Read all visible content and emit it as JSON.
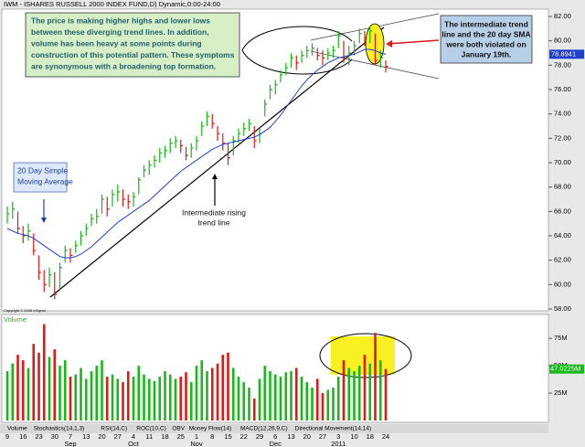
{
  "chart_data": {
    "type": "ohlc",
    "title": "IWM - ISHARES RUSSELL 2000 INDEX FUND,D) Dynamic,0:00-24:00",
    "copyright": "Copyright © 2005 eSignal",
    "categories": [
      "9",
      null,
      null,
      "16",
      null,
      null,
      "23",
      null,
      null,
      "30",
      null,
      null,
      "7",
      null,
      null,
      "13",
      null,
      null,
      "20",
      null,
      null,
      "27",
      null,
      null,
      "4",
      null,
      null,
      "11",
      null,
      null,
      "18",
      null,
      null,
      "25",
      null,
      null,
      "1",
      null,
      null,
      "8",
      null,
      null,
      "15",
      null,
      null,
      "22",
      null,
      null,
      "29",
      null,
      null,
      "6",
      null,
      null,
      "13",
      null,
      null,
      "20",
      null,
      null,
      "27",
      null,
      null,
      "3",
      null,
      null,
      "10",
      null,
      null,
      "18",
      null,
      null,
      "24"
    ],
    "months": [
      "Sep",
      "Oct",
      "Nov",
      "Dec",
      "2011"
    ],
    "high": [
      66.4,
      66.8,
      66.0,
      64.8,
      65.0,
      64.2,
      62.4,
      61.2,
      61.4,
      61.0,
      61.8,
      63.2,
      63.0,
      63.6,
      64.4,
      65.0,
      65.8,
      66.2,
      67.4,
      67.2,
      67.8,
      68.2,
      67.8,
      67.4,
      67.6,
      68.8,
      69.8,
      70.2,
      70.6,
      71.2,
      71.4,
      72.0,
      72.2,
      71.9,
      71.3,
      71.6,
      72.2,
      73.4,
      74.2,
      74.0,
      73.0,
      72.4,
      71.6,
      72.2,
      72.8,
      73.3,
      73.6,
      73.0,
      72.8,
      75.2,
      76.4,
      76.8,
      77.6,
      78.2,
      79.0,
      78.8,
      79.2,
      79.6,
      79.8,
      79.4,
      79.2,
      79.4,
      79.6,
      80.8,
      80.0,
      79.6,
      80.0,
      81.0,
      80.8,
      81.2,
      80.6,
      79.2,
      78.4
    ],
    "low": [
      65.0,
      65.4,
      64.2,
      63.4,
      63.6,
      62.4,
      60.4,
      59.4,
      59.8,
      58.8,
      59.6,
      61.8,
      61.8,
      62.6,
      63.2,
      64.0,
      64.8,
      65.0,
      65.8,
      65.6,
      66.4,
      66.8,
      66.4,
      66.2,
      66.4,
      67.4,
      68.8,
      69.0,
      69.6,
      70.0,
      70.4,
      70.8,
      71.2,
      70.8,
      70.2,
      70.4,
      71.0,
      72.2,
      73.0,
      72.8,
      71.8,
      71.0,
      69.8,
      70.6,
      71.6,
      72.2,
      72.6,
      71.2,
      71.6,
      73.8,
      75.2,
      75.6,
      76.6,
      77.2,
      77.8,
      77.6,
      78.2,
      78.6,
      78.8,
      78.4,
      78.0,
      78.4,
      78.6,
      79.4,
      78.2,
      78.0,
      78.8,
      79.8,
      79.6,
      79.8,
      78.0,
      77.8,
      77.4
    ],
    "close": [
      65.8,
      66.2,
      64.6,
      64.0,
      64.4,
      62.8,
      61.0,
      60.0,
      60.8,
      59.2,
      61.4,
      62.8,
      62.4,
      63.2,
      64.0,
      64.6,
      65.4,
      65.6,
      67.0,
      66.2,
      67.4,
      67.6,
      67.0,
      66.8,
      67.2,
      68.6,
      69.4,
      69.8,
      70.2,
      70.8,
      71.0,
      71.6,
      71.8,
      71.4,
      70.6,
      71.2,
      71.8,
      73.0,
      73.8,
      73.2,
      72.4,
      71.6,
      70.4,
      71.8,
      72.4,
      72.8,
      73.2,
      71.8,
      72.4,
      74.8,
      76.0,
      76.4,
      77.2,
      77.8,
      78.6,
      78.2,
      78.8,
      79.2,
      79.4,
      78.8,
      78.6,
      79.0,
      79.2,
      80.4,
      78.6,
      79.0,
      79.6,
      80.6,
      80.2,
      80.8,
      78.4,
      78.6,
      77.9
    ],
    "sma": {
      "name": "20 Day Simple Moving Average",
      "color": "#1f3fd0",
      "last_label": "78.8941",
      "values": [
        64.6,
        64.4,
        64.2,
        64.1,
        64.0,
        63.8,
        63.5,
        63.2,
        62.9,
        62.6,
        62.3,
        62.2,
        62.2,
        62.3,
        62.5,
        62.8,
        63.1,
        63.5,
        63.9,
        64.3,
        64.7,
        65.1,
        65.4,
        65.7,
        66.0,
        66.3,
        66.6,
        66.9,
        67.3,
        67.7,
        68.1,
        68.5,
        68.9,
        69.3,
        69.6,
        69.9,
        70.2,
        70.5,
        70.8,
        71.1,
        71.3,
        71.5,
        71.6,
        71.7,
        71.8,
        71.9,
        72.0,
        72.1,
        72.3,
        72.6,
        72.9,
        73.4,
        73.9,
        74.5,
        75.1,
        75.7,
        76.3,
        76.8,
        77.2,
        77.6,
        77.9,
        78.2,
        78.4,
        78.6,
        78.7,
        78.8,
        78.9,
        79.1,
        79.3,
        79.3,
        79.2,
        79.0,
        78.9
      ]
    },
    "ylim": [
      58,
      82
    ],
    "yticks": [
      {
        "value": 58,
        "label": "58.00"
      },
      {
        "value": 60,
        "label": "60.00"
      },
      {
        "value": 62,
        "label": "62.00"
      },
      {
        "value": 64,
        "label": "64.00"
      },
      {
        "value": 66,
        "label": "66.00"
      },
      {
        "value": 68,
        "label": "68.00"
      },
      {
        "value": 70,
        "label": "70.00"
      },
      {
        "value": 72,
        "label": "72.00"
      },
      {
        "value": 74,
        "label": "74.00"
      },
      {
        "value": 76,
        "label": "76.00"
      },
      {
        "value": 78,
        "label": "78.00"
      },
      {
        "value": 80,
        "label": "80.00"
      },
      {
        "value": 82,
        "label": "82.00"
      }
    ],
    "up_color": "#18b818",
    "down_color": "#e01818",
    "volume": {
      "title": "Volume",
      "last_label": "47.0225M",
      "values": [
        45,
        52,
        60,
        55,
        48,
        70,
        62,
        88,
        58,
        65,
        50,
        55,
        40,
        42,
        48,
        38,
        45,
        50,
        55,
        40,
        42,
        38,
        35,
        45,
        40,
        50,
        42,
        38,
        36,
        40,
        45,
        42,
        38,
        40,
        44,
        35,
        50,
        55,
        45,
        48,
        52,
        60,
        62,
        48,
        40,
        35,
        30,
        20,
        38,
        50,
        45,
        42,
        40,
        44,
        45,
        48,
        40,
        35,
        30,
        38,
        25,
        28,
        30,
        40,
        55,
        48,
        45,
        50,
        60,
        52,
        80,
        55,
        47
      ],
      "ylim": [
        0,
        96
      ],
      "yticks": [
        {
          "value": 25,
          "label": "25M"
        },
        {
          "value": 50,
          "label": "50M"
        },
        {
          "value": 75,
          "label": "75M"
        }
      ]
    },
    "tabs": [
      "Volume",
      "Stochastics(14,1,3)",
      "RSI(14,C)",
      "ROC(10,C)",
      "OBV",
      "Money Flow(14)",
      "MACD(12,26,9,C)",
      "Directional Movement(14,14)"
    ],
    "annotations": {
      "main": [
        "The price is making higher highs and lower lows",
        "between these diverging trend lines. In addition,",
        "volume has been heavy at some points during",
        "construction of this potential pattern. These symptoms",
        "are synonymous with a broadening top formation."
      ],
      "sma_note": [
        "20 Day Simple",
        "Moving Average"
      ],
      "trend_note": [
        "Intermediate rising",
        "trend line"
      ],
      "violation": [
        "The intermediate trend",
        "line and the 20 day SMA",
        "were both violated on",
        "January 19th."
      ]
    }
  }
}
